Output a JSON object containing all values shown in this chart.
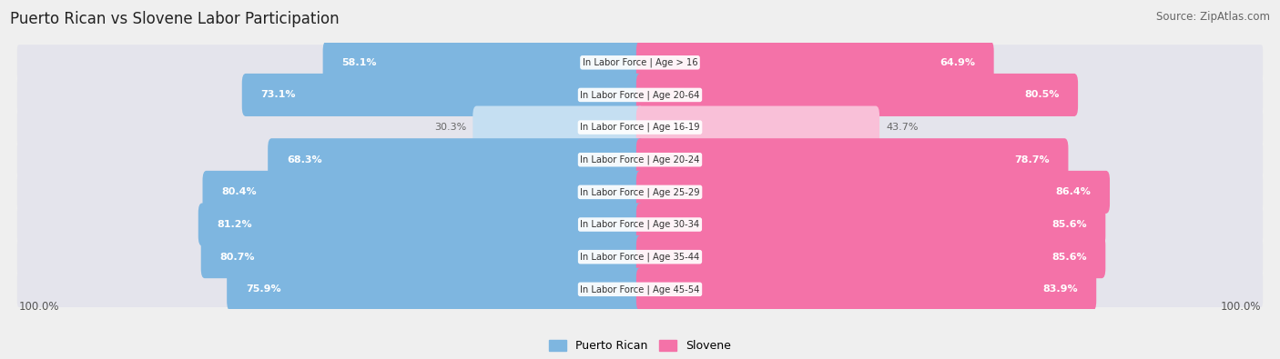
{
  "title": "Puerto Rican vs Slovene Labor Participation",
  "source": "Source: ZipAtlas.com",
  "categories": [
    "In Labor Force | Age > 16",
    "In Labor Force | Age 20-64",
    "In Labor Force | Age 16-19",
    "In Labor Force | Age 20-24",
    "In Labor Force | Age 25-29",
    "In Labor Force | Age 30-34",
    "In Labor Force | Age 35-44",
    "In Labor Force | Age 45-54"
  ],
  "puerto_rican": [
    58.1,
    73.1,
    30.3,
    68.3,
    80.4,
    81.2,
    80.7,
    75.9
  ],
  "slovene": [
    64.9,
    80.5,
    43.7,
    78.7,
    86.4,
    85.6,
    85.6,
    83.9
  ],
  "blue_color": "#7EB6E0",
  "blue_light_color": "#C5DFF2",
  "pink_color": "#F472A8",
  "pink_light_color": "#F9C0D8",
  "bg_color": "#EFEFEF",
  "row_bg_even": "#E8E8EE",
  "row_bg_odd": "#DCDCE4",
  "label_color_white": "#FFFFFF",
  "label_color_dark": "#666666",
  "center_label_color": "#333333",
  "title_color": "#222222",
  "legend_pr": "Puerto Rican",
  "legend_sl": "Slovene",
  "light_rows": [
    2
  ]
}
